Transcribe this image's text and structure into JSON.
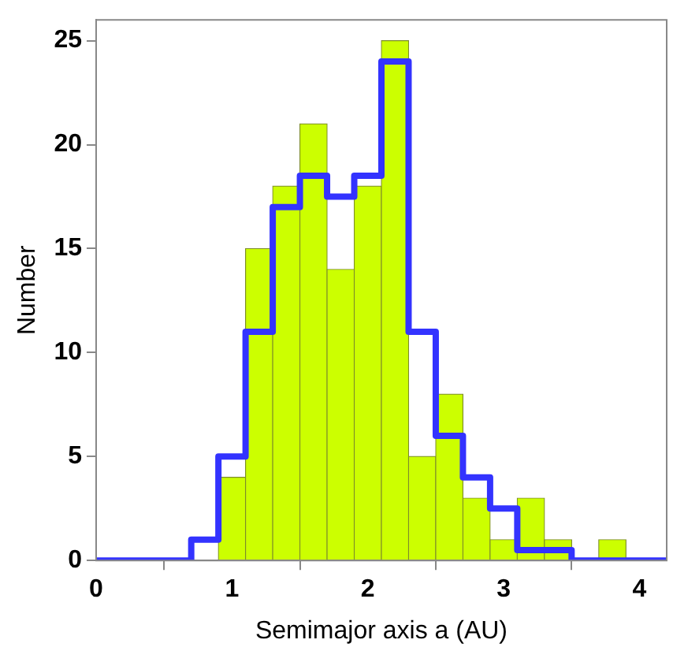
{
  "chart_data": {
    "type": "histogram",
    "xlabel": "Semimajor axis a (AU)",
    "ylabel": "Number",
    "bins": [
      0.7,
      0.9,
      1.1,
      1.3,
      1.5,
      1.7,
      1.9,
      2.1,
      2.3,
      2.5,
      2.7,
      2.9,
      3.1,
      3.3,
      3.5,
      3.7,
      3.9,
      4.1
    ],
    "values": [
      0,
      4,
      15,
      18,
      21,
      14,
      18,
      25,
      5,
      8,
      3,
      1,
      3,
      1,
      0,
      1,
      0
    ],
    "color": "#ccff00",
    "series": [
      {
        "type": "step",
        "color": "#3333ff",
        "x": [
          0,
          0.7,
          0.9,
          1.1,
          1.3,
          1.5,
          1.7,
          1.9,
          2.1,
          2.3,
          2.5,
          2.7,
          2.9,
          3.1,
          3.3,
          3.5,
          4.2
        ],
        "values": [
          0,
          1,
          5,
          11,
          17,
          18.5,
          17.5,
          18.5,
          24,
          11,
          6,
          4,
          2.5,
          0.5,
          0.5,
          0,
          0
        ]
      }
    ],
    "xlim": [
      0,
      4.2
    ],
    "xticks": [
      0,
      1,
      2,
      3,
      4
    ],
    "ylim": [
      0,
      26
    ],
    "yticks": [
      0,
      5,
      10,
      15,
      20,
      25
    ]
  }
}
